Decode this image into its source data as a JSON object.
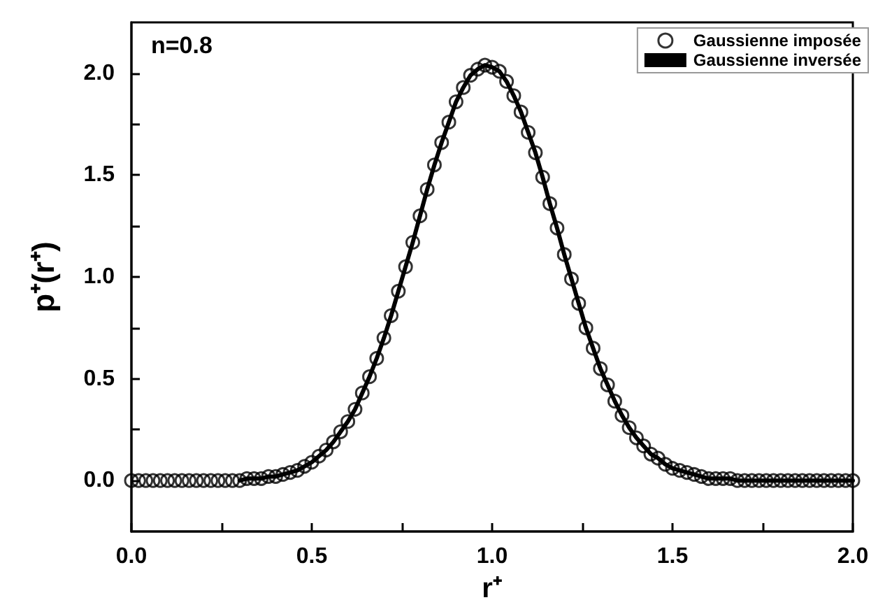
{
  "chart_data": {
    "type": "line",
    "xlabel": "r⁺",
    "ylabel": "p⁺(r⁺)",
    "annotations": [
      "n=0.8"
    ],
    "x": [
      0,
      0.02,
      0.04,
      0.06,
      0.08,
      0.1,
      0.12,
      0.14,
      0.16,
      0.18,
      0.2,
      0.22,
      0.24,
      0.26,
      0.28,
      0.3,
      0.32,
      0.34,
      0.36,
      0.38,
      0.4,
      0.42,
      0.44,
      0.46,
      0.48,
      0.5,
      0.52,
      0.54,
      0.56,
      0.58,
      0.6,
      0.62,
      0.64,
      0.66,
      0.68,
      0.7,
      0.72,
      0.74,
      0.76,
      0.78,
      0.8,
      0.82,
      0.84,
      0.86,
      0.88,
      0.9,
      0.92,
      0.94,
      0.96,
      0.98,
      1,
      1.02,
      1.04,
      1.06,
      1.08,
      1.1,
      1.12,
      1.14,
      1.16,
      1.18,
      1.2,
      1.22,
      1.24,
      1.26,
      1.28,
      1.3,
      1.32,
      1.34,
      1.36,
      1.38,
      1.4,
      1.42,
      1.44,
      1.46,
      1.48,
      1.5,
      1.52,
      1.54,
      1.56,
      1.58,
      1.6,
      1.62,
      1.64,
      1.66,
      1.68,
      1.7,
      1.72,
      1.74,
      1.76,
      1.78,
      1.8,
      1.82,
      1.84,
      1.86,
      1.88,
      1.9,
      1.92,
      1.94,
      1.96,
      1.98,
      2
    ],
    "series": [
      {
        "name": "Gaussienne imposée",
        "type": "scatter",
        "marker": "circle",
        "color": "#000000",
        "values": [
          0,
          0,
          0,
          0,
          0,
          0,
          0,
          0,
          0,
          0,
          0,
          0,
          0,
          0,
          0,
          0,
          0.01,
          0.01,
          0.01,
          0.02,
          0.02,
          0.03,
          0.04,
          0.05,
          0.07,
          0.09,
          0.12,
          0.15,
          0.19,
          0.24,
          0.29,
          0.35,
          0.43,
          0.51,
          0.6,
          0.7,
          0.81,
          0.93,
          1.05,
          1.17,
          1.3,
          1.43,
          1.55,
          1.66,
          1.76,
          1.86,
          1.93,
          1.99,
          2.02,
          2.04,
          2.03,
          2.01,
          1.96,
          1.89,
          1.81,
          1.71,
          1.61,
          1.49,
          1.36,
          1.24,
          1.11,
          0.99,
          0.87,
          0.75,
          0.65,
          0.55,
          0.47,
          0.39,
          0.32,
          0.26,
          0.21,
          0.17,
          0.13,
          0.11,
          0.08,
          0.06,
          0.05,
          0.04,
          0.03,
          0.02,
          0.01,
          0.01,
          0.01,
          0.01,
          0,
          0,
          0,
          0,
          0,
          0,
          0,
          0,
          0,
          0,
          0,
          0,
          0,
          0,
          0,
          0,
          0
        ]
      },
      {
        "name": "Gaussienne inversée",
        "marker": "none",
        "line_style": "solid",
        "color": "#000000",
        "values": [
          null,
          null,
          null,
          null,
          null,
          null,
          null,
          null,
          null,
          null,
          null,
          null,
          null,
          null,
          null,
          0,
          0.01,
          0.01,
          0.01,
          0.02,
          0.02,
          0.03,
          0.04,
          0.05,
          0.07,
          0.09,
          0.12,
          0.15,
          0.19,
          0.24,
          0.29,
          0.35,
          0.43,
          0.51,
          0.6,
          0.7,
          0.81,
          0.93,
          1.05,
          1.17,
          1.3,
          1.43,
          1.55,
          1.66,
          1.76,
          1.86,
          1.93,
          1.99,
          2.02,
          2.04,
          2.03,
          2.01,
          1.96,
          1.89,
          1.81,
          1.71,
          1.61,
          1.49,
          1.36,
          1.24,
          1.11,
          0.99,
          0.87,
          0.75,
          0.65,
          0.55,
          0.47,
          0.39,
          0.32,
          0.26,
          0.21,
          0.17,
          0.13,
          0.11,
          0.08,
          0.06,
          0.05,
          0.04,
          0.03,
          0.02,
          0.01,
          0.01,
          0.01,
          0.01,
          0,
          0,
          0,
          0,
          0,
          0,
          0,
          0,
          0,
          0,
          0,
          0,
          0,
          0,
          0,
          0,
          0
        ]
      }
    ],
    "xlim": [
      0,
      2
    ],
    "xticks": [
      {
        "value": 0,
        "label": "0.0"
      },
      {
        "value": 0.25,
        "label": null
      },
      0.5,
      {
        "value": 0.75,
        "label": null
      },
      {
        "value": 1,
        "label": "1.0"
      },
      {
        "value": 1.25,
        "label": null
      },
      1.5,
      {
        "value": 1.75,
        "label": null
      },
      {
        "value": 2,
        "label": "2.0"
      }
    ],
    "ylim": [
      -0.25,
      2.25
    ],
    "yticks": [
      {
        "value": 0,
        "label": "0.0"
      },
      {
        "value": 0.25,
        "label": null
      },
      {
        "value": 0.5,
        "label": "0.5"
      },
      {
        "value": 0.75,
        "label": null
      },
      {
        "value": 1,
        "label": "1.0"
      },
      {
        "value": 1.25,
        "label": null
      },
      {
        "value": 1.5,
        "label": "1.5"
      },
      {
        "value": 1.75,
        "label": null
      },
      {
        "value": 2,
        "label": "2.0"
      }
    ],
    "grid": false,
    "legend": "top right"
  }
}
